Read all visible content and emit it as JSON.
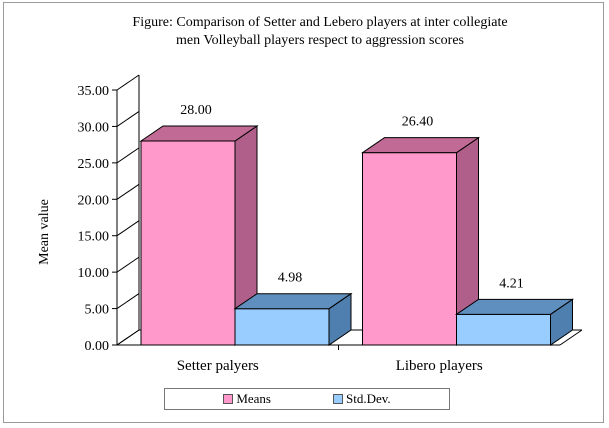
{
  "chart_data": {
    "type": "bar",
    "title": "Figure: Comparison of Setter and Lebero players at inter collegiate men Volleyball players respect to aggression scores",
    "title_lines": [
      "Figure: Comparison of Setter and Lebero players at inter collegiate",
      "men Volleyball players respect to aggression scores"
    ],
    "xlabel": "",
    "ylabel": "Mean value",
    "categories": [
      "Setter palyers",
      "Libero players"
    ],
    "series": [
      {
        "name": "Means",
        "values": [
          28.0,
          26.4
        ],
        "value_labels": [
          "28.00",
          "26.40"
        ],
        "color": "#ff99cc",
        "side_color": "#b05f8a",
        "top_color": "#c06a95"
      },
      {
        "name": "Std.Dev.",
        "values": [
          4.98,
          4.21
        ],
        "value_labels": [
          "4.98",
          "4.21"
        ],
        "color": "#99ccff",
        "side_color": "#4f7fae",
        "top_color": "#5f8fbe"
      }
    ],
    "ylim": [
      0,
      35
    ],
    "yticks": [
      "0.00",
      "5.00",
      "10.00",
      "15.00",
      "20.00",
      "25.00",
      "30.00",
      "35.00"
    ],
    "style": "3d-column",
    "grid": false,
    "legend_position": "bottom"
  }
}
